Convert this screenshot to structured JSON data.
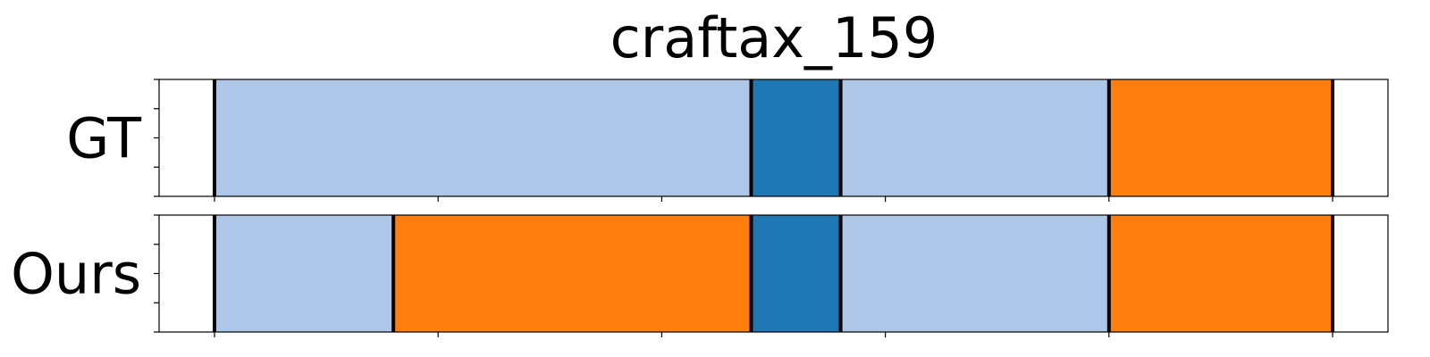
{
  "chart_data": {
    "type": "segmentation-timeline",
    "title": "craftax_159",
    "x_range": [
      0,
      1375
    ],
    "boundary_ticks": [
      0,
      250,
      500,
      750,
      1000,
      1250
    ],
    "classes": [
      {
        "id": "A",
        "color": "#aec7e8"
      },
      {
        "id": "B",
        "color": "#1f77b4"
      },
      {
        "id": "C",
        "color": "#ff7f0e"
      }
    ],
    "rows": [
      {
        "label": "GT",
        "segments": [
          {
            "start": 0,
            "end": 600,
            "class": "A"
          },
          {
            "start": 600,
            "end": 700,
            "class": "B"
          },
          {
            "start": 700,
            "end": 1000,
            "class": "A"
          },
          {
            "start": 1000,
            "end": 1250,
            "class": "C"
          }
        ],
        "boundaries": [
          0,
          600,
          700,
          1000,
          1250
        ]
      },
      {
        "label": "Ours",
        "segments": [
          {
            "start": 0,
            "end": 200,
            "class": "A"
          },
          {
            "start": 200,
            "end": 600,
            "class": "C"
          },
          {
            "start": 600,
            "end": 700,
            "class": "B"
          },
          {
            "start": 700,
            "end": 1000,
            "class": "A"
          },
          {
            "start": 1000,
            "end": 1250,
            "class": "C"
          }
        ],
        "boundaries": [
          0,
          200,
          600,
          700,
          1000,
          1250
        ]
      }
    ]
  }
}
